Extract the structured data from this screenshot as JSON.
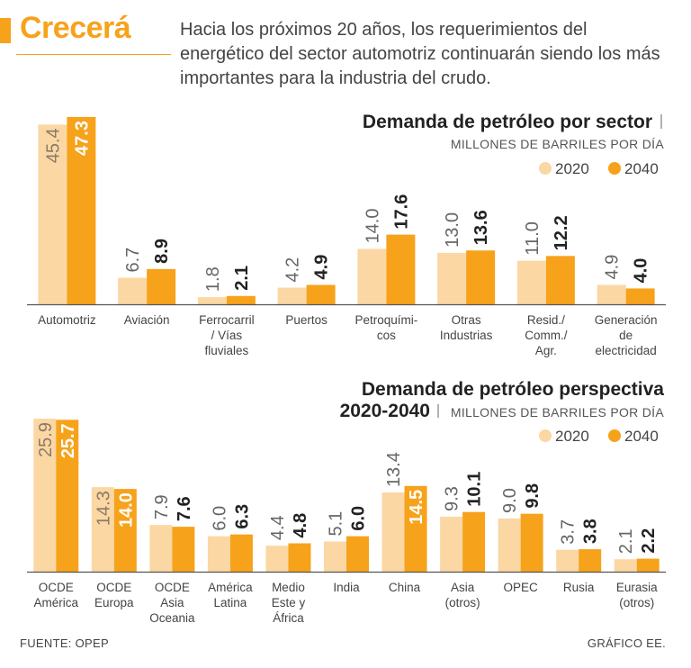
{
  "header": {
    "title": "Crecerá",
    "description": "Hacia los próximos 20 años, los requerimientos del energético del sector automotriz continuarán siendo los más importantes para la industria del crudo."
  },
  "colors": {
    "c2020": "#fbd7a4",
    "c2040": "#f7a21b",
    "accent": "#f7a21b",
    "axis": "#555555"
  },
  "chart_data": [
    {
      "type": "bar",
      "title": "Demanda de petróleo por sector",
      "subtitle": "MILLONES DE BARRILES POR DÍA",
      "legend": [
        "2020",
        "2040"
      ],
      "categories": [
        [
          "Automotriz"
        ],
        [
          "Aviación"
        ],
        [
          "Ferrocarril",
          "/ Vías",
          "fluviales"
        ],
        [
          "Puertos"
        ],
        [
          "Petroquími-",
          "cos"
        ],
        [
          "Otras",
          "Industrias"
        ],
        [
          "Resid./",
          "Comm./",
          "Agr."
        ],
        [
          "Generación",
          "de",
          "electricidad"
        ]
      ],
      "series": [
        {
          "name": "2020",
          "values": [
            45.4,
            6.7,
            1.8,
            4.2,
            14.0,
            13.0,
            11.0,
            4.9
          ]
        },
        {
          "name": "2040",
          "values": [
            47.3,
            8.9,
            2.1,
            4.9,
            17.6,
            13.6,
            12.2,
            4.0
          ]
        }
      ],
      "ylim": [
        0,
        47.3
      ]
    },
    {
      "type": "bar",
      "title": "Demanda de petróleo perspectiva",
      "title2": "2020-2040",
      "subtitle": "MILLONES DE BARRILES POR DÍA",
      "legend": [
        "2020",
        "2040"
      ],
      "categories": [
        [
          "OCDE",
          "América"
        ],
        [
          "OCDE",
          "Europa"
        ],
        [
          "OCDE",
          "Asia",
          "Oceania"
        ],
        [
          "América",
          "Latina"
        ],
        [
          "Medio",
          "Este y",
          "África"
        ],
        [
          "India"
        ],
        [
          "China"
        ],
        [
          "Asia",
          "(otros)"
        ],
        [
          "OPEC"
        ],
        [
          "Rusia"
        ],
        [
          "Eurasia",
          "(otros)"
        ]
      ],
      "series": [
        {
          "name": "2020",
          "values": [
            25.9,
            14.3,
            7.9,
            6.0,
            4.4,
            5.1,
            13.4,
            9.3,
            9.0,
            3.7,
            2.1
          ]
        },
        {
          "name": "2040",
          "values": [
            25.7,
            14.0,
            7.6,
            6.3,
            4.8,
            6.0,
            14.5,
            10.1,
            9.8,
            3.8,
            2.2
          ]
        }
      ],
      "ylim": [
        0,
        25.9
      ]
    }
  ],
  "footer": {
    "source": "FUENTE: OPEP",
    "credit": "GRÁFICO EE."
  }
}
